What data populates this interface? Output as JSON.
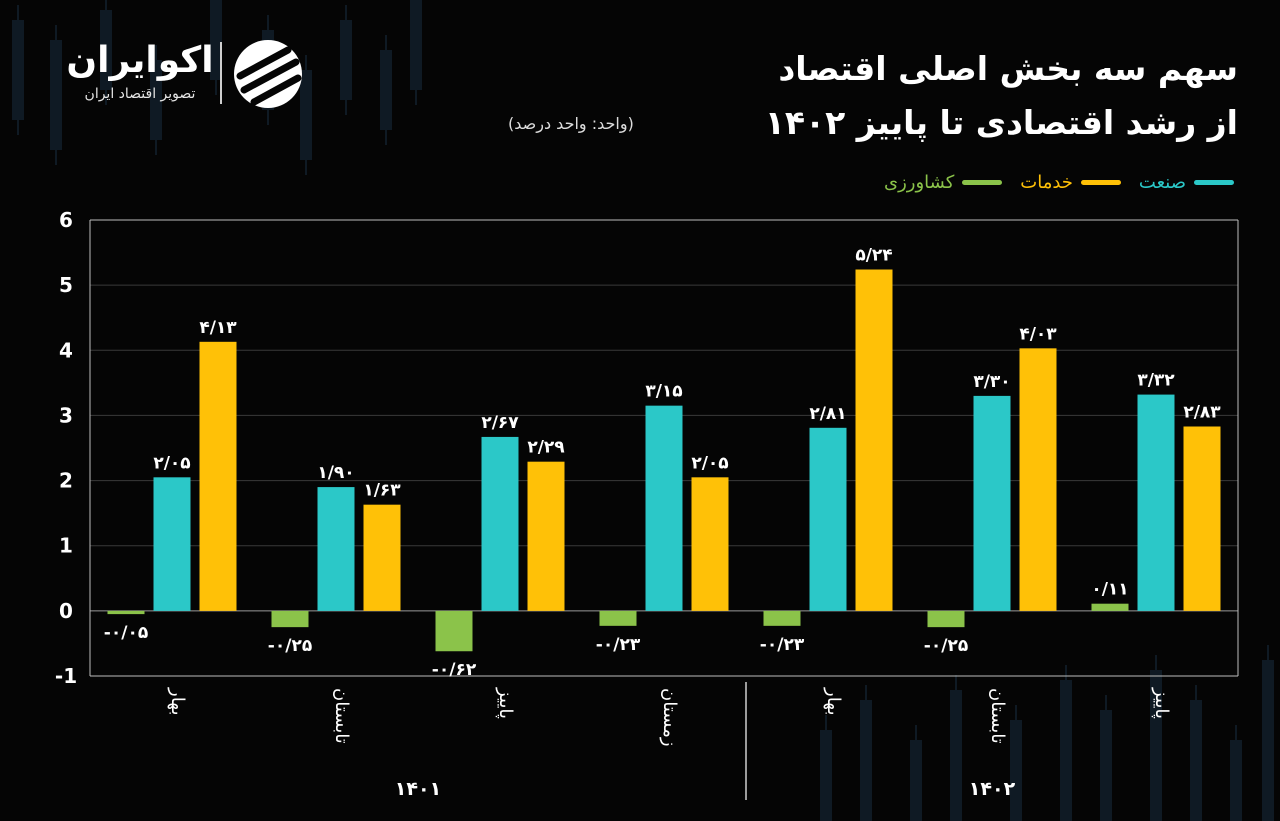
{
  "brand": {
    "name": "اکوایران",
    "tagline": "تصویر اقتصاد ایران"
  },
  "header": {
    "title_line1": "سهم سه بخش اصلی اقتصاد",
    "title_line2": "از رشد اقتصادی تا پاییز ۱۴۰۲",
    "unit_note": "(واحد: واحد درصد)"
  },
  "colors": {
    "background": "#050505",
    "industry": "#2bc8c8",
    "services": "#ffc107",
    "agriculture": "#8bc34a",
    "grid": "#3a3a3a",
    "text": "#ffffff"
  },
  "chart_data": {
    "type": "bar",
    "ylim": [
      -1,
      6
    ],
    "yticks": [
      "-1",
      "0",
      "1",
      "2",
      "3",
      "4",
      "5",
      "6"
    ],
    "grid": true,
    "legend_position": "top-right",
    "categories": [
      "بهار",
      "تابستان",
      "پاییز",
      "زمستان",
      "بهار",
      "تابستان",
      "پاییز"
    ],
    "groups": [
      {
        "label": "۱۴۰۱",
        "count": 4
      },
      {
        "label": "۱۴۰۲",
        "count": 3
      }
    ],
    "series": [
      {
        "name": "کشاورزی",
        "color": "#8bc34a",
        "values": [
          -0.05,
          -0.25,
          -0.62,
          -0.23,
          -0.23,
          -0.25,
          0.11
        ],
        "labels": [
          "-۰/۰۵",
          "-۰/۲۵",
          "-۰/۶۲",
          "-۰/۲۳",
          "-۰/۲۳",
          "-۰/۲۵",
          "۰/۱۱"
        ]
      },
      {
        "name": "صنعت",
        "color": "#2bc8c8",
        "values": [
          2.05,
          1.9,
          2.67,
          3.15,
          2.81,
          3.3,
          3.32
        ],
        "labels": [
          "۲/۰۵",
          "۱/۹۰",
          "۲/۶۷",
          "۳/۱۵",
          "۲/۸۱",
          "۳/۳۰",
          "۳/۳۲"
        ]
      },
      {
        "name": "خدمات",
        "color": "#ffc107",
        "values": [
          4.13,
          1.63,
          2.29,
          2.05,
          5.24,
          4.03,
          2.83
        ],
        "labels": [
          "۴/۱۳",
          "۱/۶۳",
          "۲/۲۹",
          "۲/۰۵",
          "۵/۲۴",
          "۴/۰۳",
          "۲/۸۳"
        ]
      }
    ]
  }
}
